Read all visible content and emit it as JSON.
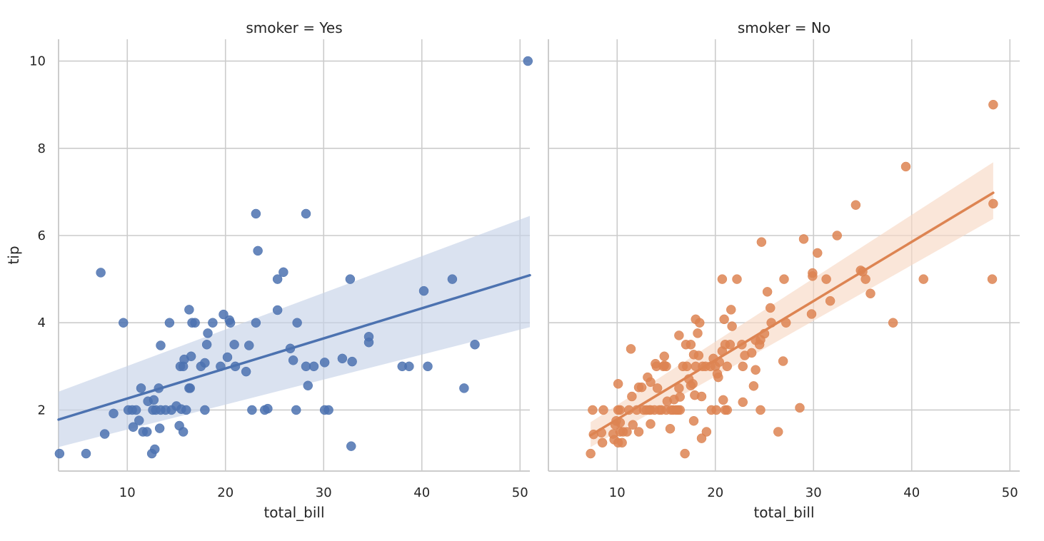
{
  "chart_data": [
    {
      "type": "scatter",
      "title": "smoker = Yes",
      "xlabel": "total_bill",
      "ylabel": "tip",
      "xlim": [
        3,
        51
      ],
      "ylim": [
        0.6,
        10.5
      ],
      "xticks": [
        10,
        20,
        30,
        40,
        50
      ],
      "yticks": [
        2,
        4,
        6,
        8,
        10
      ],
      "grid": true,
      "color": "#4c72b0",
      "band_color": "#c6d2e8",
      "regression": {
        "x": [
          3,
          51
        ],
        "y": [
          1.78,
          5.09
        ],
        "ci_lower": [
          1.15,
          3.9
        ],
        "ci_upper": [
          2.42,
          6.45
        ]
      },
      "points": [
        [
          3.1,
          1.0
        ],
        [
          5.8,
          1.0
        ],
        [
          7.3,
          5.15
        ],
        [
          7.7,
          1.45
        ],
        [
          8.6,
          1.92
        ],
        [
          9.6,
          4.0
        ],
        [
          10.1,
          2.0
        ],
        [
          10.5,
          2.0
        ],
        [
          10.6,
          1.61
        ],
        [
          10.9,
          2.0
        ],
        [
          11.2,
          1.76
        ],
        [
          11.4,
          2.5
        ],
        [
          11.6,
          1.5
        ],
        [
          12.0,
          1.5
        ],
        [
          12.1,
          2.2
        ],
        [
          12.5,
          1.0
        ],
        [
          12.6,
          2.0
        ],
        [
          12.7,
          2.23
        ],
        [
          12.8,
          1.1
        ],
        [
          12.9,
          2.0
        ],
        [
          13.2,
          2.5
        ],
        [
          13.3,
          1.58
        ],
        [
          13.4,
          3.48
        ],
        [
          13.4,
          2.0
        ],
        [
          13.9,
          2.0
        ],
        [
          14.3,
          4.0
        ],
        [
          14.5,
          2.0
        ],
        [
          15.0,
          2.09
        ],
        [
          15.3,
          1.64
        ],
        [
          15.4,
          3.0
        ],
        [
          15.5,
          2.02
        ],
        [
          15.7,
          1.5
        ],
        [
          15.7,
          3.0
        ],
        [
          15.8,
          3.16
        ],
        [
          16.0,
          2.0
        ],
        [
          16.3,
          4.3
        ],
        [
          16.3,
          2.5
        ],
        [
          16.4,
          2.5
        ],
        [
          16.5,
          3.23
        ],
        [
          16.6,
          4.0
        ],
        [
          16.9,
          4.0
        ],
        [
          17.5,
          3.0
        ],
        [
          17.9,
          3.08
        ],
        [
          17.9,
          2.0
        ],
        [
          18.1,
          3.5
        ],
        [
          18.2,
          3.76
        ],
        [
          18.7,
          4.0
        ],
        [
          19.5,
          3.0
        ],
        [
          19.8,
          4.19
        ],
        [
          20.2,
          3.21
        ],
        [
          20.4,
          4.06
        ],
        [
          20.5,
          4.0
        ],
        [
          20.9,
          3.5
        ],
        [
          21.0,
          3.0
        ],
        [
          22.1,
          2.88
        ],
        [
          22.4,
          3.48
        ],
        [
          22.7,
          2.0
        ],
        [
          23.1,
          6.5
        ],
        [
          23.1,
          4.0
        ],
        [
          23.3,
          5.65
        ],
        [
          24.0,
          2.0
        ],
        [
          24.3,
          2.03
        ],
        [
          25.3,
          4.29
        ],
        [
          25.3,
          5.0
        ],
        [
          25.9,
          5.16
        ],
        [
          26.6,
          3.41
        ],
        [
          26.9,
          3.14
        ],
        [
          27.2,
          2.0
        ],
        [
          27.3,
          4.0
        ],
        [
          28.2,
          3.0
        ],
        [
          28.2,
          6.5
        ],
        [
          28.4,
          2.56
        ],
        [
          29.0,
          3.0
        ],
        [
          30.1,
          3.09
        ],
        [
          30.1,
          2.0
        ],
        [
          30.5,
          2.0
        ],
        [
          31.9,
          3.18
        ],
        [
          32.7,
          5.0
        ],
        [
          32.8,
          1.17
        ],
        [
          32.9,
          3.11
        ],
        [
          34.6,
          3.68
        ],
        [
          34.6,
          3.55
        ],
        [
          38.0,
          3.0
        ],
        [
          38.7,
          3.0
        ],
        [
          40.2,
          4.73
        ],
        [
          40.6,
          3.0
        ],
        [
          43.1,
          5.0
        ],
        [
          44.3,
          2.5
        ],
        [
          45.4,
          3.5
        ],
        [
          50.8,
          10.0
        ]
      ]
    },
    {
      "type": "scatter",
      "title": "smoker = No",
      "xlabel": "total_bill",
      "ylabel": "",
      "xlim": [
        3,
        51
      ],
      "ylim": [
        0.6,
        10.5
      ],
      "xticks": [
        10,
        20,
        30,
        40,
        50
      ],
      "yticks": [
        2,
        4,
        6,
        8,
        10
      ],
      "grid": true,
      "color": "#dd8452",
      "band_color": "#f8d8c4",
      "regression": {
        "x": [
          7.3,
          48.3
        ],
        "y": [
          1.42,
          6.98
        ],
        "ci_lower": [
          1.15,
          6.38
        ],
        "ci_upper": [
          1.72,
          7.68
        ]
      },
      "points": [
        [
          7.3,
          1.0
        ],
        [
          7.5,
          2.0
        ],
        [
          7.6,
          1.44
        ],
        [
          8.4,
          1.48
        ],
        [
          8.5,
          1.25
        ],
        [
          8.6,
          2.0
        ],
        [
          9.6,
          1.45
        ],
        [
          9.7,
          1.32
        ],
        [
          9.8,
          1.66
        ],
        [
          9.9,
          1.75
        ],
        [
          10.1,
          2.0
        ],
        [
          10.1,
          1.25
        ],
        [
          10.1,
          2.6
        ],
        [
          10.3,
          1.71
        ],
        [
          10.3,
          1.5
        ],
        [
          10.3,
          2.0
        ],
        [
          10.5,
          1.25
        ],
        [
          10.6,
          1.5
        ],
        [
          11.0,
          1.5
        ],
        [
          11.2,
          2.0
        ],
        [
          11.4,
          3.4
        ],
        [
          11.5,
          2.31
        ],
        [
          11.6,
          1.66
        ],
        [
          12.0,
          2.0
        ],
        [
          12.2,
          1.5
        ],
        [
          12.2,
          2.52
        ],
        [
          12.5,
          2.52
        ],
        [
          12.7,
          2.0
        ],
        [
          13.0,
          2.0
        ],
        [
          13.1,
          2.75
        ],
        [
          13.3,
          2.0
        ],
        [
          13.4,
          2.0
        ],
        [
          13.4,
          2.64
        ],
        [
          13.4,
          1.68
        ],
        [
          13.8,
          2.0
        ],
        [
          13.9,
          3.06
        ],
        [
          14.0,
          3.0
        ],
        [
          14.1,
          2.5
        ],
        [
          14.3,
          2.0
        ],
        [
          14.5,
          2.0
        ],
        [
          14.7,
          3.0
        ],
        [
          14.8,
          3.02
        ],
        [
          14.8,
          3.23
        ],
        [
          15.0,
          2.0
        ],
        [
          15.0,
          3.0
        ],
        [
          15.1,
          2.2
        ],
        [
          15.4,
          1.57
        ],
        [
          15.5,
          2.0
        ],
        [
          15.7,
          2.0
        ],
        [
          15.8,
          2.24
        ],
        [
          16.0,
          2.0
        ],
        [
          16.2,
          2.0
        ],
        [
          16.3,
          3.71
        ],
        [
          16.3,
          2.5
        ],
        [
          16.4,
          2.3
        ],
        [
          16.4,
          2.0
        ],
        [
          16.7,
          3.0
        ],
        [
          16.9,
          1.0
        ],
        [
          17.0,
          3.5
        ],
        [
          17.1,
          3.0
        ],
        [
          17.3,
          2.71
        ],
        [
          17.5,
          3.5
        ],
        [
          17.5,
          2.56
        ],
        [
          17.7,
          2.6
        ],
        [
          17.8,
          3.27
        ],
        [
          17.8,
          1.75
        ],
        [
          17.9,
          2.34
        ],
        [
          18.0,
          4.08
        ],
        [
          18.0,
          3.0
        ],
        [
          18.2,
          3.76
        ],
        [
          18.3,
          3.25
        ],
        [
          18.4,
          4.0
        ],
        [
          18.6,
          1.35
        ],
        [
          18.6,
          2.31
        ],
        [
          18.7,
          3.0
        ],
        [
          19.0,
          3.0
        ],
        [
          19.1,
          1.5
        ],
        [
          19.5,
          3.0
        ],
        [
          19.6,
          2.0
        ],
        [
          19.8,
          3.18
        ],
        [
          20.0,
          3.0
        ],
        [
          20.1,
          2.0
        ],
        [
          20.2,
          2.83
        ],
        [
          20.3,
          2.75
        ],
        [
          20.4,
          3.1
        ],
        [
          20.7,
          3.35
        ],
        [
          20.7,
          5.0
        ],
        [
          20.8,
          2.23
        ],
        [
          20.9,
          4.08
        ],
        [
          21.0,
          3.5
        ],
        [
          21.0,
          2.0
        ],
        [
          21.2,
          3.0
        ],
        [
          21.2,
          2.0
        ],
        [
          21.5,
          3.5
        ],
        [
          21.6,
          4.3
        ],
        [
          21.7,
          3.92
        ],
        [
          22.2,
          5.0
        ],
        [
          22.7,
          3.5
        ],
        [
          22.8,
          3.0
        ],
        [
          22.8,
          2.18
        ],
        [
          23.0,
          3.25
        ],
        [
          23.7,
          3.31
        ],
        [
          23.9,
          2.55
        ],
        [
          24.1,
          2.92
        ],
        [
          24.1,
          3.6
        ],
        [
          24.5,
          3.5
        ],
        [
          24.6,
          2.0
        ],
        [
          24.6,
          3.61
        ],
        [
          24.7,
          5.85
        ],
        [
          25.0,
          3.75
        ],
        [
          25.3,
          4.71
        ],
        [
          25.6,
          4.34
        ],
        [
          25.7,
          4.0
        ],
        [
          26.4,
          1.5
        ],
        [
          26.9,
          3.12
        ],
        [
          27.0,
          5.0
        ],
        [
          27.2,
          4.0
        ],
        [
          28.6,
          2.05
        ],
        [
          29.0,
          5.92
        ],
        [
          29.8,
          4.2
        ],
        [
          29.9,
          5.14
        ],
        [
          29.9,
          5.07
        ],
        [
          30.4,
          5.6
        ],
        [
          31.3,
          5.0
        ],
        [
          31.7,
          4.5
        ],
        [
          32.4,
          6.0
        ],
        [
          34.3,
          6.7
        ],
        [
          34.8,
          5.2
        ],
        [
          35.0,
          5.17
        ],
        [
          35.3,
          5.0
        ],
        [
          35.8,
          4.67
        ],
        [
          38.1,
          4.0
        ],
        [
          39.4,
          7.58
        ],
        [
          41.2,
          5.0
        ],
        [
          48.2,
          5.0
        ],
        [
          48.3,
          9.0
        ],
        [
          48.3,
          6.73
        ]
      ]
    }
  ]
}
